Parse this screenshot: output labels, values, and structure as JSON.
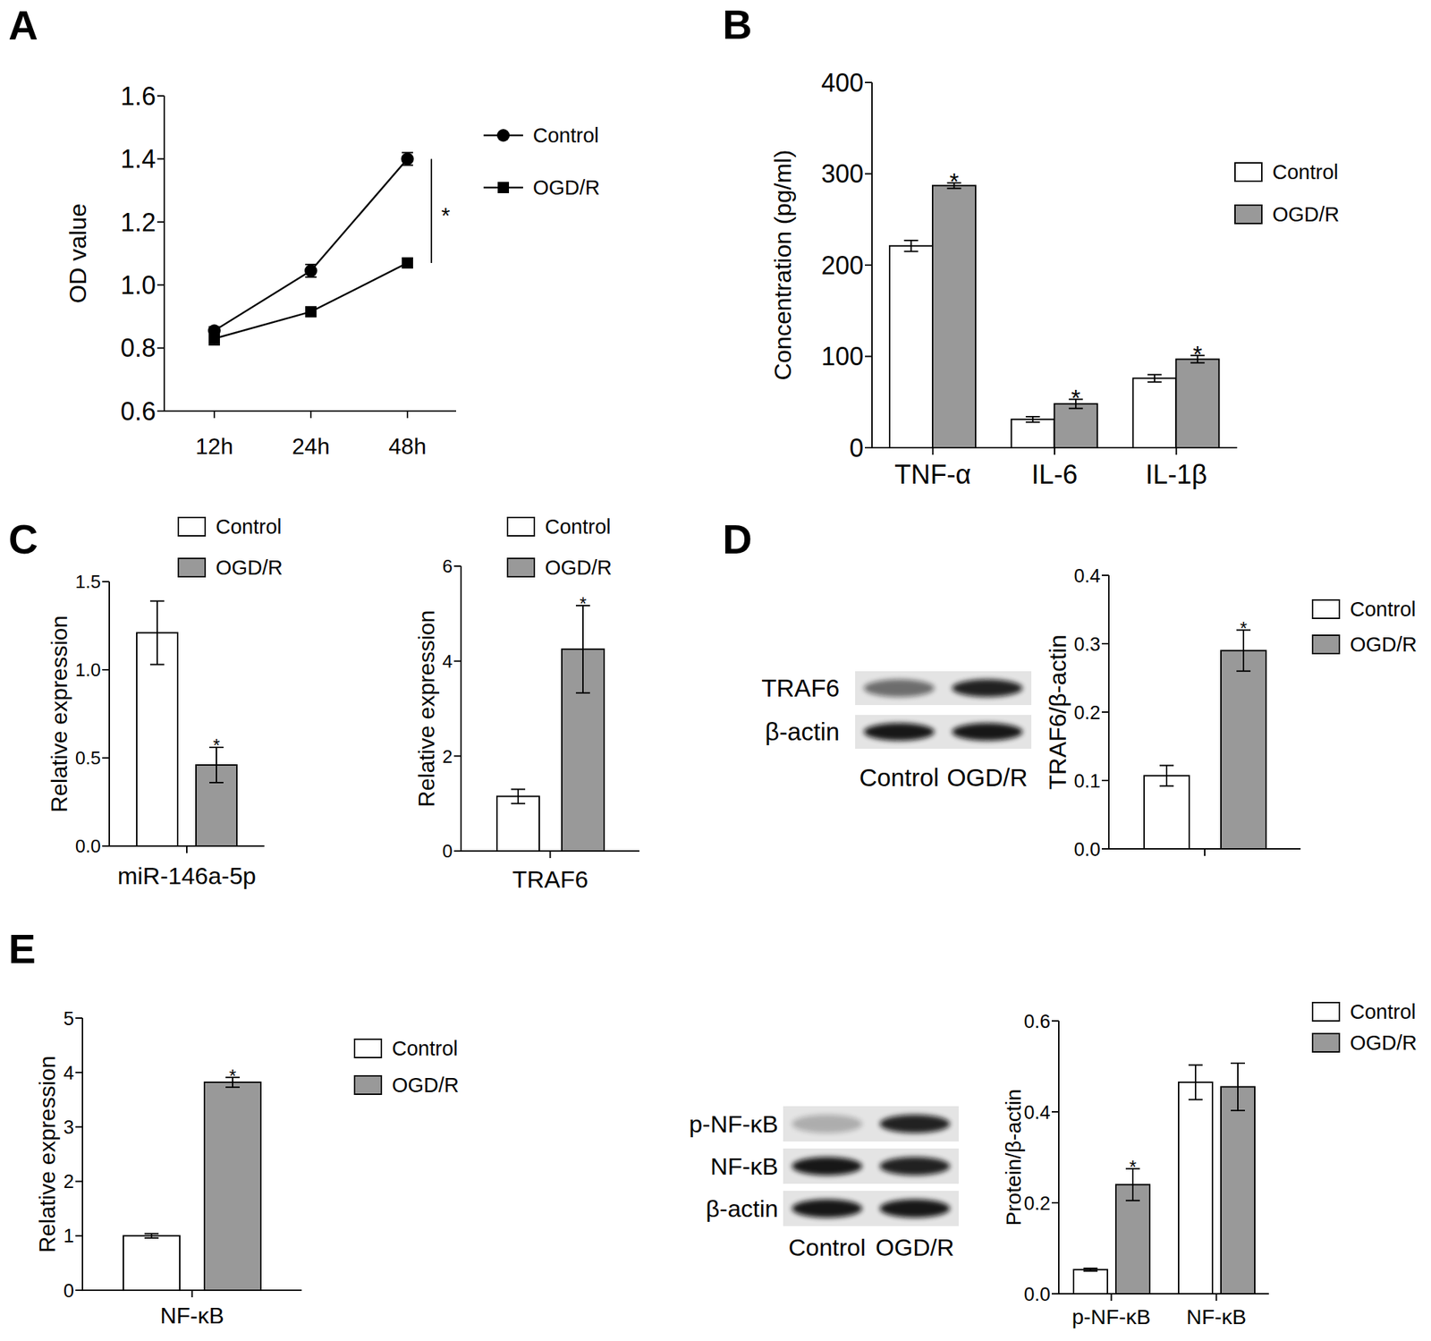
{
  "chart_data": [
    {
      "type": "line",
      "panel_label": "A",
      "y_label": "OD value",
      "categories": [
        "12h",
        "24h",
        "48h"
      ],
      "series": [
        {
          "name": "Control",
          "color": "#000000",
          "marker": "circle",
          "values": [
            0.855,
            1.045,
            1.4
          ],
          "errors": [
            0.012,
            0.02,
            0.02
          ]
        },
        {
          "name": "OGD/R",
          "color": "#000000",
          "marker": "square",
          "values": [
            0.83,
            0.915,
            1.07
          ],
          "errors": [
            0.02,
            0.012,
            0.01
          ]
        }
      ],
      "ylim": [
        0.6,
        1.6
      ],
      "yticks": [
        0.6,
        0.8,
        {
          "value": 1,
          "label": "1.0"
        },
        1.2,
        1.4,
        1.6
      ],
      "legend": "right",
      "annotations": [
        {
          "text": "*",
          "category": "48h"
        }
      ]
    },
    {
      "type": "bar",
      "panel_label": "B",
      "y_label": "Concentration (pg/ml)",
      "categories": [
        "TNF-α",
        "IL-6",
        "IL-1β"
      ],
      "series": [
        {
          "name": "Control",
          "color": "#ffffff",
          "values": [
            221,
            31,
            76
          ],
          "errors": [
            6,
            3,
            4
          ]
        },
        {
          "name": "OGD/R",
          "color": "#999999",
          "values": [
            287,
            48,
            97
          ],
          "errors": [
            3,
            5,
            4
          ],
          "annotations": [
            "*",
            "*",
            "*"
          ]
        }
      ],
      "ylim": [
        0,
        400
      ],
      "yticks": [
        0,
        100,
        200,
        300,
        400
      ],
      "legend": "right"
    },
    {
      "type": "bar",
      "panel_label": "C",
      "y_label": "Relative expression",
      "categories": [
        "miR-146a-5p"
      ],
      "series": [
        {
          "name": "Control",
          "color": "#ffffff",
          "values": [
            1.21
          ],
          "errors": [
            0.18
          ]
        },
        {
          "name": "OGD/R",
          "color": "#999999",
          "values": [
            0.46
          ],
          "errors": [
            0.1
          ],
          "annotations": [
            "*"
          ]
        }
      ],
      "ylim": [
        0,
        1.5
      ],
      "yticks": [
        {
          "value": 0,
          "label": "0.0"
        },
        0.5,
        {
          "value": 1,
          "label": "1.0"
        },
        1.5
      ],
      "legend": "top"
    },
    {
      "type": "bar",
      "y_label": "Relative expression",
      "categories": [
        "TRAF6"
      ],
      "series": [
        {
          "name": "Control",
          "color": "#ffffff",
          "values": [
            1.15
          ],
          "errors": [
            0.15
          ]
        },
        {
          "name": "OGD/R",
          "color": "#999999",
          "values": [
            4.25
          ],
          "errors": [
            0.92
          ],
          "annotations": [
            "*"
          ]
        }
      ],
      "ylim": [
        0,
        6
      ],
      "yticks": [
        0,
        2,
        4,
        6
      ],
      "legend": "top"
    },
    {
      "type": "bar",
      "panel_label": "D",
      "y_label": "TRAF6/β-actin",
      "categories": [
        null
      ],
      "series": [
        {
          "name": "Control",
          "color": "#ffffff",
          "values": [
            0.107
          ],
          "errors": [
            0.015
          ]
        },
        {
          "name": "OGD/R",
          "color": "#999999",
          "values": [
            0.29
          ],
          "errors": [
            0.03
          ],
          "annotations": [
            "*"
          ]
        }
      ],
      "ylim": [
        0,
        0.4
      ],
      "yticks": [
        {
          "value": 0,
          "label": "0.0"
        },
        0.1,
        0.2,
        0.3,
        0.4
      ],
      "legend": "right"
    },
    {
      "type": "bar",
      "panel_label": "E",
      "y_label": "Relative expression",
      "categories": [
        "NF-κB"
      ],
      "series": [
        {
          "name": "Control",
          "color": "#ffffff",
          "values": [
            1.0
          ],
          "errors": [
            0.04
          ]
        },
        {
          "name": "OGD/R",
          "color": "#999999",
          "values": [
            3.82
          ],
          "errors": [
            0.09
          ],
          "annotations": [
            "*"
          ]
        }
      ],
      "ylim": [
        0,
        5
      ],
      "yticks": [
        0,
        1,
        2,
        3,
        4,
        5
      ],
      "legend": "right"
    },
    {
      "type": "bar",
      "y_label": "Protein/β-actin",
      "categories": [
        "p-NF-κB",
        "NF-κB"
      ],
      "series": [
        {
          "name": "Control",
          "color": "#ffffff",
          "values": [
            0.053,
            0.465
          ],
          "errors": [
            0.003,
            0.038
          ]
        },
        {
          "name": "OGD/R",
          "color": "#999999",
          "values": [
            0.24,
            0.455
          ],
          "errors": [
            0.035,
            0.052
          ],
          "annotations": [
            "*",
            null
          ]
        }
      ],
      "ylim": [
        0,
        0.6
      ],
      "yticks": [
        {
          "value": 0,
          "label": "0.0"
        },
        0.2,
        0.4,
        0.6
      ],
      "legend": "right"
    }
  ],
  "blots": [
    {
      "rows": [
        "TRAF6",
        "β-actin"
      ],
      "lanes": [
        "Control",
        "OGD/R"
      ]
    },
    {
      "rows": [
        "p-NF-κB",
        "NF-κB",
        "β-actin"
      ],
      "lanes": [
        "Control",
        "OGD/R"
      ]
    }
  ]
}
